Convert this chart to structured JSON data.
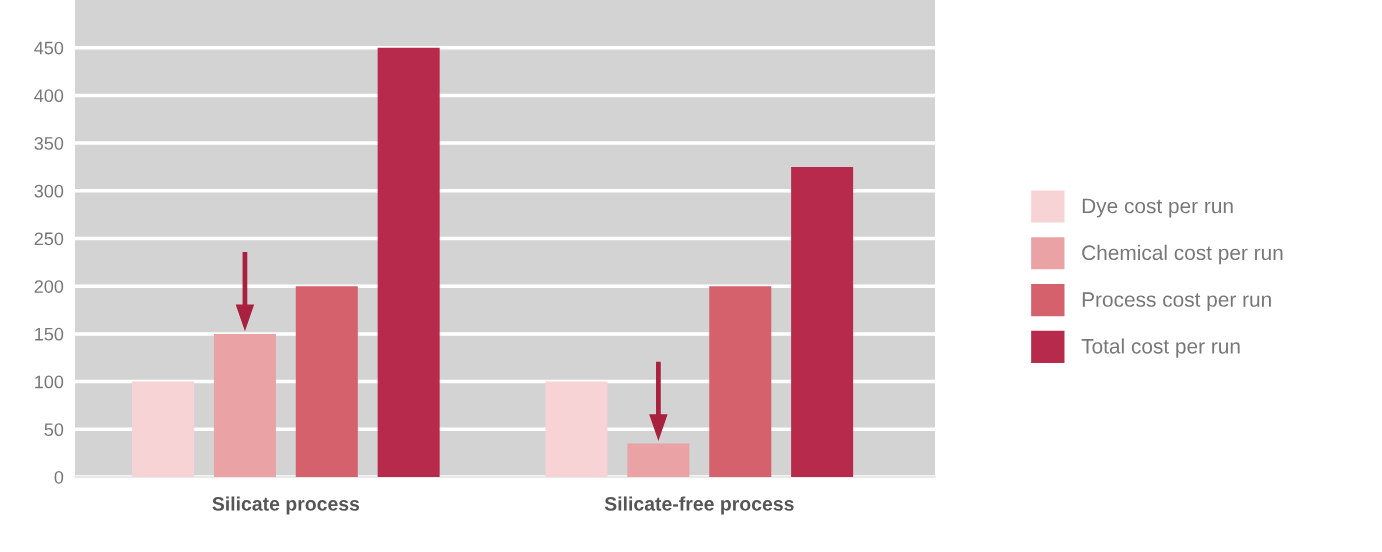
{
  "chart_data": {
    "type": "bar",
    "categories": [
      "Silicate process",
      "Silicate-free process"
    ],
    "series": [
      {
        "name": "Dye cost per run",
        "color": "#f8d3d6",
        "values": [
          100,
          100
        ]
      },
      {
        "name": "Chemical cost per run",
        "color": "#eba2a5",
        "values": [
          150,
          35
        ]
      },
      {
        "name": "Process cost per run",
        "color": "#d4616b",
        "values": [
          200,
          200
        ]
      },
      {
        "name": "Total cost per run",
        "color": "#b72a4b",
        "values": [
          450,
          325
        ]
      }
    ],
    "ylim": [
      0,
      500
    ],
    "yticks": [
      0,
      50,
      100,
      150,
      200,
      250,
      300,
      350,
      400,
      450
    ],
    "grid": "y",
    "legend": "right"
  }
}
